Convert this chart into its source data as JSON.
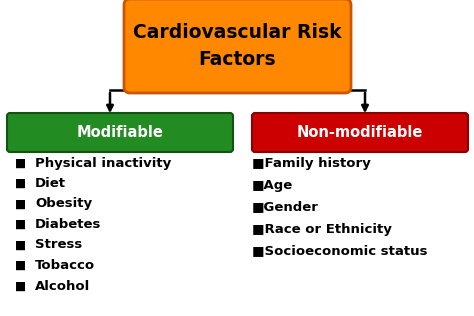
{
  "title": "Cardiovascular Risk\nFactors",
  "title_box_color": "#FF8800",
  "title_box_edge": "#CC5500",
  "title_text_color": "#000000",
  "left_label": "Modifiable",
  "left_label_bg": "#228B22",
  "left_label_edge": "#145214",
  "left_label_text": "#FFFFFF",
  "right_label": "Non-modifiable",
  "right_label_bg": "#CC0000",
  "right_label_edge": "#880000",
  "right_label_text": "#FFFFFF",
  "left_items": [
    "Physical inactivity",
    "Diet",
    "Obesity",
    "Diabetes",
    "Stress",
    "Tobacco",
    "Alcohol"
  ],
  "right_items": [
    "Family history",
    "Age",
    "Gender",
    "Race or Ethnicity",
    "Socioeconomic status"
  ],
  "bg_color": "#FFFFFF",
  "item_text_color": "#000000",
  "bullet": "■",
  "item_fontsize": 9.5,
  "label_fontsize": 10.5,
  "title_fontsize": 13.5
}
